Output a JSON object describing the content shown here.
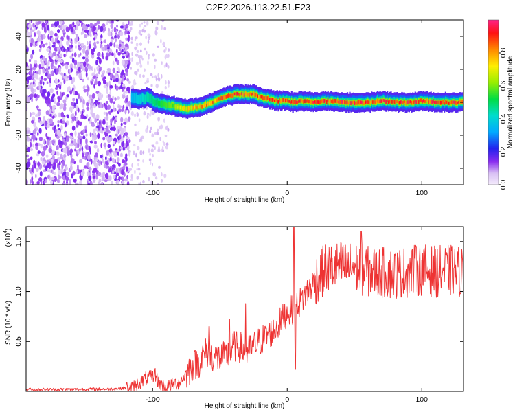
{
  "figure_title": "C2E2.2026.113.22.51.E23",
  "chart_data": [
    {
      "type": "heatmap",
      "title": "C2E2.2026.113.22.51.E23",
      "xlabel": "Height of straight line (km)",
      "ylabel": "Frequency (Hz)",
      "xlim": [
        -194,
        131
      ],
      "ylim": [
        -50,
        50
      ],
      "x_ticks": [
        -100,
        0,
        100
      ],
      "x_tick_labels": [
        "-100",
        "0",
        "100"
      ],
      "y_ticks": [
        -40,
        -20,
        0,
        20,
        40
      ],
      "y_tick_labels": [
        "-40",
        "-20",
        "0",
        "20",
        "40"
      ],
      "colorbar": {
        "label": "Normalized spectral amplitude",
        "range": [
          0.0,
          1.0
        ],
        "ticks": [
          0.0,
          0.2,
          0.4,
          0.6,
          0.8
        ],
        "tick_labels": [
          "0.0",
          "0.2",
          "0.4",
          "0.6",
          "0.8"
        ]
      },
      "noise_region_km": [
        -194,
        -117
      ],
      "sparse_noise_region_km": [
        -117,
        -88
      ],
      "ridge": {
        "x": [
          -116,
          -110,
          -104,
          -98,
          -92,
          -86,
          -80,
          -74,
          -68,
          -62,
          -56,
          -50,
          -44,
          -38,
          -32,
          -26,
          -20,
          -14,
          -8,
          -2,
          4,
          10,
          20,
          30,
          40,
          50,
          60,
          70,
          80,
          90,
          100,
          110,
          120,
          131
        ],
        "y": [
          3,
          2,
          3,
          0,
          -1,
          -2,
          -3,
          -4,
          -3,
          -2,
          0,
          2,
          4,
          5,
          5,
          5,
          3,
          2,
          1,
          1,
          0,
          1,
          0,
          1,
          0,
          0,
          0,
          1,
          0,
          0,
          1,
          0,
          0,
          0
        ],
        "amplitude": [
          0.35,
          0.4,
          0.45,
          0.5,
          0.55,
          0.6,
          0.7,
          0.75,
          0.8,
          0.85,
          0.85,
          0.9,
          0.95,
          0.95,
          0.95,
          0.9,
          0.9,
          0.9,
          0.9,
          0.9,
          0.95,
          0.95,
          0.95,
          0.95,
          0.95,
          0.95,
          0.95,
          0.95,
          0.95,
          0.95,
          0.95,
          0.95,
          0.95,
          0.95
        ]
      }
    },
    {
      "type": "line",
      "title": "",
      "xlabel": "Height of straight line (km)",
      "ylabel": "SNR (10 * v/v)",
      "y_scale_label": "(x10",
      "y_scale_exponent": "4",
      "y_scale_suffix": ")",
      "xlim": [
        -194,
        131
      ],
      "ylim": [
        0,
        16500
      ],
      "x_ticks": [
        -100,
        0,
        100
      ],
      "x_tick_labels": [
        "-100",
        "0",
        "100"
      ],
      "y_ticks": [
        5000,
        10000,
        15000
      ],
      "y_tick_labels": [
        "0.5",
        "1.0",
        "1.5"
      ],
      "color": "#ee3333",
      "series": [
        {
          "name": "SNR",
          "x": [
            -194,
            -160,
            -130,
            -115,
            -105,
            -98,
            -95,
            -90,
            -85,
            -80,
            -75,
            -70,
            -65,
            -60,
            -55,
            -50,
            -45,
            -40,
            -35,
            -30,
            -25,
            -20,
            -15,
            -10,
            -5,
            0,
            5,
            10,
            15,
            20,
            25,
            30,
            40,
            50,
            60,
            70,
            80,
            90,
            100,
            110,
            120,
            131
          ],
          "y": [
            200,
            200,
            250,
            400,
            1300,
            1500,
            800,
            400,
            700,
            900,
            1800,
            2600,
            3000,
            4000,
            3500,
            3300,
            3500,
            4500,
            4400,
            4000,
            4500,
            5000,
            5600,
            6000,
            7000,
            8000,
            8200,
            9000,
            10000,
            11000,
            11800,
            12400,
            12500,
            12400,
            12000,
            11900,
            11800,
            12000,
            12200,
            12000,
            12100,
            12000
          ],
          "spikes": [
            {
              "x": -98,
              "y": 2300
            },
            {
              "x": -58,
              "y": 6500
            },
            {
              "x": -43,
              "y": 7200
            },
            {
              "x": -31,
              "y": 8800
            },
            {
              "x": 5,
              "y": 16500
            },
            {
              "x": 6,
              "y": 2200
            },
            {
              "x": 55,
              "y": 16000
            },
            {
              "x": 96,
              "y": 14500
            }
          ],
          "noise_amplitude": [
            {
              "from": -194,
              "to": -120,
              "amp": 150
            },
            {
              "from": -120,
              "to": -75,
              "amp": 700
            },
            {
              "from": -75,
              "to": -20,
              "amp": 1600
            },
            {
              "from": -20,
              "to": 20,
              "amp": 1500
            },
            {
              "from": 20,
              "to": 131,
              "amp": 2600
            }
          ]
        }
      ]
    }
  ]
}
